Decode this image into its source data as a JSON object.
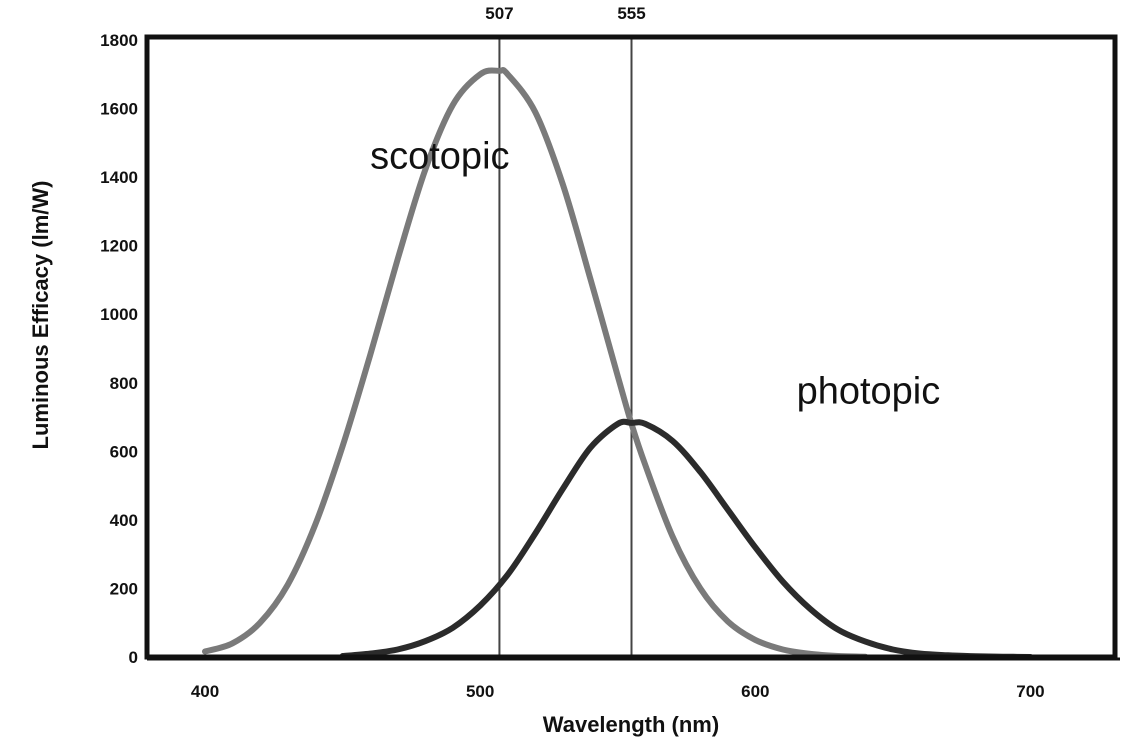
{
  "chart_data": {
    "type": "line",
    "title": "",
    "xlabel": "Wavelength (nm)",
    "ylabel": "Luminous Efficacy (lm/W)",
    "xlim": [
      380,
      730
    ],
    "ylim": [
      0,
      1800
    ],
    "xticks": [
      400,
      500,
      600,
      700
    ],
    "yticks": [
      0,
      200,
      400,
      600,
      800,
      1000,
      1200,
      1400,
      1600,
      1800
    ],
    "grid": false,
    "markers": [
      {
        "x": 507,
        "label": "507"
      },
      {
        "x": 555,
        "label": "555"
      }
    ],
    "series": [
      {
        "name": "scotopic",
        "color": "#7a7a7a",
        "x": [
          400,
          410,
          420,
          430,
          440,
          450,
          460,
          470,
          480,
          490,
          500,
          507,
          510,
          520,
          530,
          540,
          550,
          555,
          560,
          570,
          580,
          590,
          600,
          610,
          620,
          630,
          640
        ],
        "y": [
          16,
          40,
          100,
          210,
          385,
          615,
          880,
          1160,
          1420,
          1610,
          1700,
          1710,
          1700,
          1590,
          1380,
          1105,
          820,
          680,
          560,
          350,
          200,
          104,
          50,
          22,
          9,
          3,
          1
        ]
      },
      {
        "name": "photopic",
        "color": "#2b2b2b",
        "x": [
          450,
          460,
          470,
          480,
          490,
          500,
          510,
          520,
          530,
          540,
          550,
          555,
          560,
          570,
          580,
          590,
          600,
          610,
          620,
          630,
          640,
          650,
          660,
          670,
          680,
          690,
          700
        ],
        "y": [
          3,
          10,
          22,
          46,
          85,
          150,
          240,
          360,
          490,
          610,
          680,
          683,
          680,
          630,
          540,
          430,
          320,
          220,
          140,
          80,
          45,
          22,
          10,
          5,
          2,
          1,
          0
        ]
      }
    ],
    "annotations": [
      {
        "text": "scotopic",
        "x": 460,
        "y": 1425
      },
      {
        "text": "photopic",
        "x": 615,
        "y": 740
      }
    ]
  }
}
